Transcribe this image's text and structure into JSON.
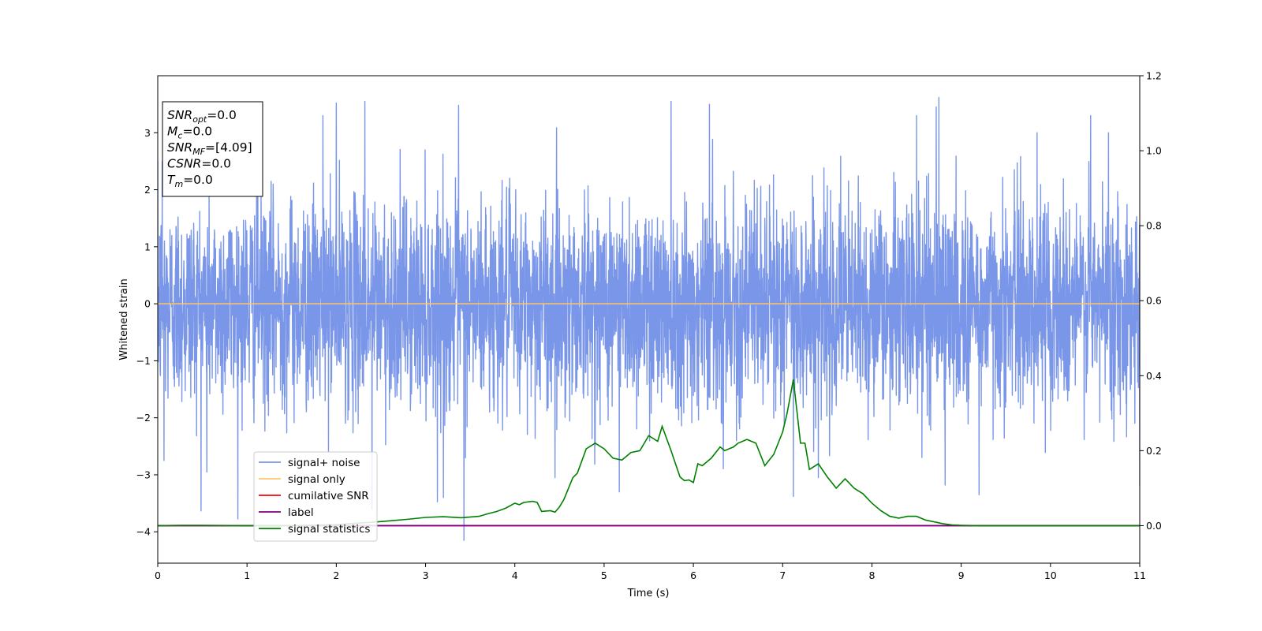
{
  "chart_data": {
    "type": "line",
    "xlabel": "Time (s)",
    "ylabel": "Whitened strain",
    "xlim": [
      0,
      11
    ],
    "ylim": [
      -4.55,
      4.0
    ],
    "y2lim": [
      -0.1,
      1.2
    ],
    "x_ticks": [
      0,
      1,
      2,
      3,
      4,
      5,
      6,
      7,
      8,
      9,
      10,
      11
    ],
    "y_ticks": [
      -4,
      -3,
      -2,
      -1,
      0,
      1,
      2,
      3
    ],
    "y_tick_labels": [
      "−4",
      "−3",
      "−2",
      "−1",
      "0",
      "1",
      "2",
      "3"
    ],
    "y2_ticks": [
      0.0,
      0.2,
      0.4,
      0.6,
      0.8,
      1.0,
      1.2
    ],
    "y2_tick_labels": [
      "0.0",
      "0.2",
      "0.4",
      "0.6",
      "0.8",
      "1.0",
      "1.2"
    ],
    "grid": false,
    "legend_position": "lower-left",
    "info_box": {
      "position": "upper-left",
      "lines": [
        {
          "symbol": "SNR",
          "sub": "opt",
          "value": "=0.0"
        },
        {
          "symbol": "M",
          "sub": "c",
          "value": "=0.0"
        },
        {
          "symbol": "SNR",
          "sub": "MF",
          "value": "=[4.09]"
        },
        {
          "symbol": "CSNR",
          "sub": "",
          "value": "=0.0"
        },
        {
          "symbol": "T",
          "sub": "m",
          "value": "=0.0"
        }
      ]
    },
    "series": [
      {
        "name": "signal+ noise",
        "color": "#7a96e8",
        "axis": "left",
        "kind": "noise",
        "x_range": [
          0,
          11
        ],
        "sample_rate": 400,
        "mean": 0.0,
        "approx_std": 0.9,
        "min": -4.15,
        "max": 3.62,
        "spikes": [
          {
            "x": 0.05,
            "y": 2.5
          },
          {
            "x": 0.07,
            "y": -2.75
          },
          {
            "x": 0.55,
            "y": -2.95
          },
          {
            "x": 1.12,
            "y": 3.1
          },
          {
            "x": 1.85,
            "y": 3.3
          },
          {
            "x": 2.0,
            "y": 3.52
          },
          {
            "x": 2.32,
            "y": 3.55
          },
          {
            "x": 2.4,
            "y": -3.6
          },
          {
            "x": 3.2,
            "y": -3.4
          },
          {
            "x": 3.37,
            "y": 3.48
          },
          {
            "x": 3.43,
            "y": -4.15
          },
          {
            "x": 4.45,
            "y": -3.05
          },
          {
            "x": 5.17,
            "y": -3.3
          },
          {
            "x": 5.75,
            "y": 3.55
          },
          {
            "x": 6.18,
            "y": 3.5
          },
          {
            "x": 7.12,
            "y": -3.38
          },
          {
            "x": 7.4,
            "y": -3.05
          },
          {
            "x": 7.25,
            "y": -0.8
          },
          {
            "x": 8.5,
            "y": 3.3
          },
          {
            "x": 8.72,
            "y": 3.45
          },
          {
            "x": 8.75,
            "y": 3.62
          },
          {
            "x": 8.82,
            "y": -3.18
          },
          {
            "x": 9.2,
            "y": -3.35
          },
          {
            "x": 9.85,
            "y": 3.0
          },
          {
            "x": 10.45,
            "y": 3.3
          },
          {
            "x": 10.65,
            "y": 3.0
          },
          {
            "x": 11.0,
            "y": -3.2
          }
        ]
      },
      {
        "name": "signal only",
        "color": "#ffc66b",
        "axis": "left",
        "x": [
          0,
          11
        ],
        "y": [
          0,
          0
        ]
      },
      {
        "name": "cumilative SNR",
        "color": "#ff0000",
        "axis": "right",
        "x": [
          0,
          11
        ],
        "y": [
          0,
          0
        ]
      },
      {
        "name": "label",
        "color": "#800080",
        "axis": "right",
        "x": [
          0,
          11
        ],
        "y": [
          0,
          0
        ]
      },
      {
        "name": "signal statistics",
        "color": "#008000",
        "axis": "right",
        "x": [
          0,
          0.25,
          0.5,
          1.0,
          1.5,
          2.0,
          2.2,
          2.4,
          2.6,
          2.8,
          3.0,
          3.2,
          3.4,
          3.6,
          3.7,
          3.8,
          3.9,
          4.0,
          4.05,
          4.1,
          4.2,
          4.25,
          4.3,
          4.4,
          4.45,
          4.5,
          4.55,
          4.65,
          4.7,
          4.8,
          4.9,
          5.0,
          5.1,
          5.2,
          5.3,
          5.4,
          5.5,
          5.6,
          5.65,
          5.75,
          5.85,
          5.9,
          5.95,
          6.0,
          6.05,
          6.1,
          6.15,
          6.2,
          6.3,
          6.35,
          6.45,
          6.5,
          6.6,
          6.7,
          6.8,
          6.9,
          7.0,
          7.05,
          7.12,
          7.2,
          7.25,
          7.3,
          7.4,
          7.5,
          7.6,
          7.7,
          7.8,
          7.9,
          8.0,
          8.1,
          8.2,
          8.3,
          8.4,
          8.5,
          8.6,
          8.7,
          8.8,
          8.9,
          9.0,
          9.2,
          9.5,
          10.0,
          10.5,
          11.0
        ],
        "y": [
          0.0,
          0.001,
          0.001,
          0.0,
          0.0,
          0.003,
          0.006,
          0.009,
          0.013,
          0.017,
          0.022,
          0.024,
          0.021,
          0.025,
          0.032,
          0.038,
          0.047,
          0.06,
          0.056,
          0.062,
          0.065,
          0.062,
          0.038,
          0.04,
          0.036,
          0.05,
          0.07,
          0.128,
          0.14,
          0.205,
          0.22,
          0.205,
          0.18,
          0.175,
          0.195,
          0.2,
          0.24,
          0.225,
          0.265,
          0.2,
          0.13,
          0.12,
          0.122,
          0.115,
          0.165,
          0.16,
          0.17,
          0.18,
          0.21,
          0.2,
          0.21,
          0.22,
          0.23,
          0.22,
          0.16,
          0.19,
          0.25,
          0.3,
          0.39,
          0.22,
          0.22,
          0.15,
          0.165,
          0.13,
          0.1,
          0.125,
          0.1,
          0.085,
          0.06,
          0.04,
          0.025,
          0.02,
          0.025,
          0.025,
          0.015,
          0.01,
          0.005,
          0.002,
          0.001,
          0.0,
          0.0,
          0.0,
          0.0,
          0.0
        ]
      }
    ]
  }
}
